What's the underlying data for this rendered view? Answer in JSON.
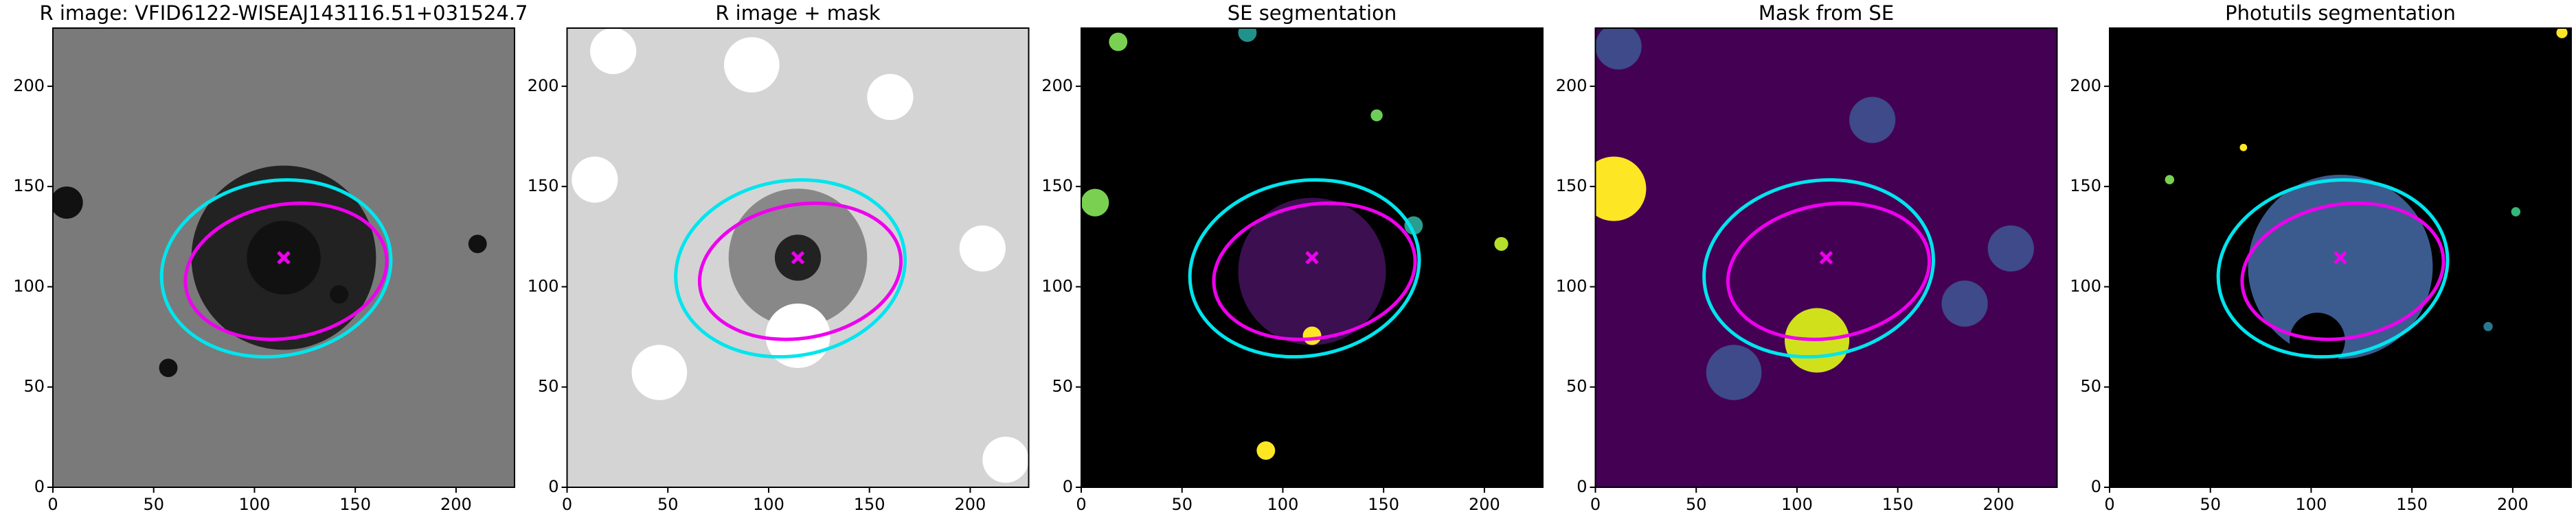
{
  "chart_data": [
    {
      "type": "image",
      "title": "R image: VFID6122-WISEAJ143116.51+031524.7",
      "color": "#7a7a7a",
      "xlim": [
        0,
        229
      ],
      "ylim": [
        0,
        229
      ],
      "xticks": [
        0,
        50,
        100,
        150,
        200
      ],
      "yticks": [
        0,
        50,
        100,
        150,
        200
      ]
    },
    {
      "type": "image",
      "title": "R image + mask",
      "color": "#d4d4d4",
      "xlim": [
        0,
        229
      ],
      "ylim": [
        0,
        229
      ],
      "xticks": [
        0,
        50,
        100,
        150,
        200
      ],
      "yticks": [
        0,
        50,
        100,
        150,
        200
      ]
    },
    {
      "type": "image",
      "title": "SE segmentation",
      "color": "#000000",
      "xlim": [
        0,
        229
      ],
      "ylim": [
        0,
        229
      ],
      "xticks": [
        0,
        50,
        100,
        150,
        200
      ],
      "yticks": [
        0,
        50,
        100,
        150,
        200
      ]
    },
    {
      "type": "image",
      "title": "Mask from SE",
      "color": "#440154",
      "xlim": [
        0,
        229
      ],
      "ylim": [
        0,
        229
      ],
      "xticks": [
        0,
        50,
        100,
        150,
        200
      ],
      "yticks": [
        0,
        50,
        100,
        150,
        200
      ]
    },
    {
      "type": "image",
      "title": "Photutils segmentation",
      "color": "#000000",
      "xlim": [
        0,
        229
      ],
      "ylim": [
        0,
        229
      ],
      "xticks": [
        0,
        50,
        100,
        150,
        200
      ],
      "yticks": [
        0,
        50,
        100,
        150,
        200
      ]
    }
  ]
}
